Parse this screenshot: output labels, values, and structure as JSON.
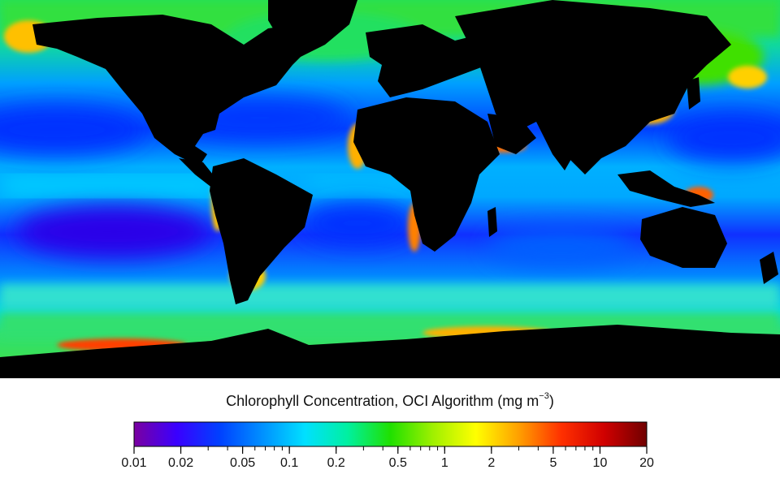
{
  "map": {
    "colors": {
      "ocean_oligotrophic": "#2400ff",
      "ocean_low": "#0064ff",
      "ocean_mid": "#00c8ff",
      "ocean_green": "#00e070",
      "ocean_high": "#ffd000",
      "ocean_very_high": "#ff2000",
      "land": "#000000"
    }
  },
  "colorbar": {
    "title_text": "Chlorophyll Concentration, OCI Algorithm (mg m",
    "title_exponent": "−3",
    "title_close": ")",
    "scale": "log",
    "range": [
      0.01,
      20
    ],
    "major_ticks": [
      {
        "value": 0.01,
        "label": "0.01"
      },
      {
        "value": 0.02,
        "label": "0.02"
      },
      {
        "value": 0.05,
        "label": "0.05"
      },
      {
        "value": 0.1,
        "label": "0.1"
      },
      {
        "value": 0.2,
        "label": "0.2"
      },
      {
        "value": 0.5,
        "label": "0.5"
      },
      {
        "value": 1,
        "label": "1"
      },
      {
        "value": 2,
        "label": "2"
      },
      {
        "value": 5,
        "label": "5"
      },
      {
        "value": 10,
        "label": "10"
      },
      {
        "value": 20,
        "label": "20"
      }
    ],
    "gradient_stops": [
      "#7a00a0",
      "#3a00ff",
      "#0040ff",
      "#0090ff",
      "#00e0ff",
      "#00f0a0",
      "#20e000",
      "#a0f000",
      "#ffff00",
      "#ffa000",
      "#ff3000",
      "#d00000",
      "#700000"
    ]
  }
}
